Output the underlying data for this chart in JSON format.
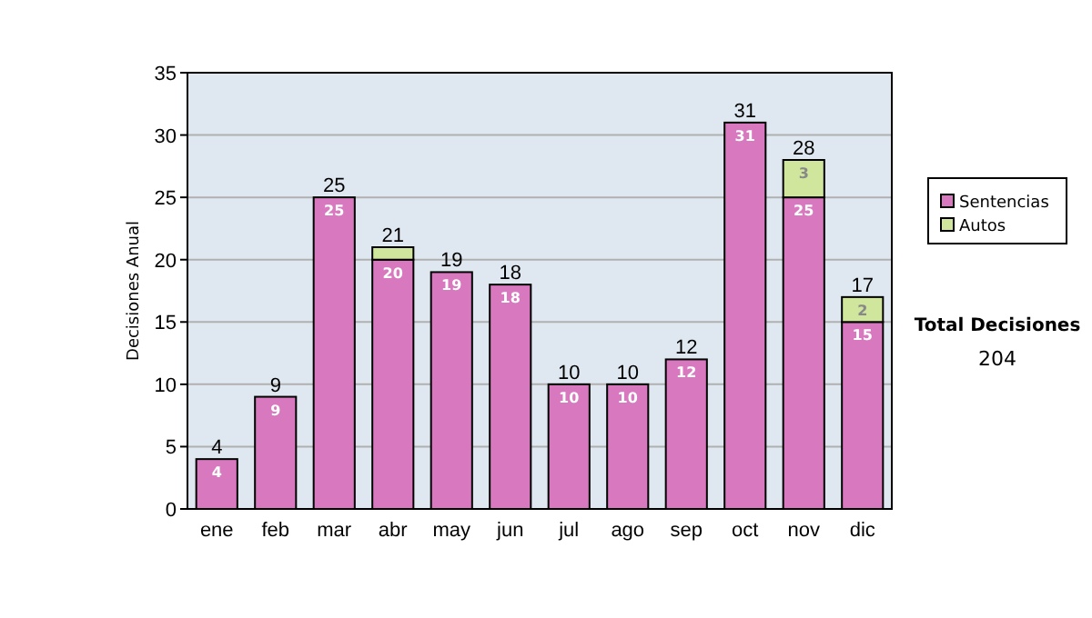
{
  "chart_data": {
    "type": "bar",
    "ylabel": "Decisiones Anual",
    "categories": [
      "ene",
      "feb",
      "mar",
      "abr",
      "may",
      "jun",
      "jul",
      "ago",
      "sep",
      "oct",
      "nov",
      "dic"
    ],
    "stacked": true,
    "series": [
      {
        "name": "Sentencias",
        "color": "#d878bf",
        "values": [
          4,
          9,
          25,
          20,
          19,
          18,
          10,
          10,
          12,
          31,
          25,
          15
        ],
        "value_labels": [
          "4",
          "9",
          "25",
          "20",
          "19",
          "18",
          "10",
          "10",
          "12",
          "31",
          "25",
          "15"
        ]
      },
      {
        "name": "Autos",
        "color": "#cfe69c",
        "values": [
          0,
          0,
          0,
          1,
          0,
          0,
          0,
          0,
          0,
          0,
          3,
          2
        ],
        "value_labels": [
          null,
          null,
          null,
          null,
          null,
          null,
          null,
          null,
          null,
          null,
          "3",
          "2"
        ]
      }
    ],
    "totals": [
      "4",
      "9",
      "25",
      "21",
      "19",
      "18",
      "10",
      "10",
      "12",
      "31",
      "28",
      "17"
    ],
    "ylim": [
      0,
      35
    ],
    "yticks": [
      0,
      5,
      10,
      15,
      20,
      25,
      30,
      35
    ],
    "grid": "y",
    "legend": "right",
    "annotations": [
      "Total Decisiones",
      "204"
    ]
  }
}
